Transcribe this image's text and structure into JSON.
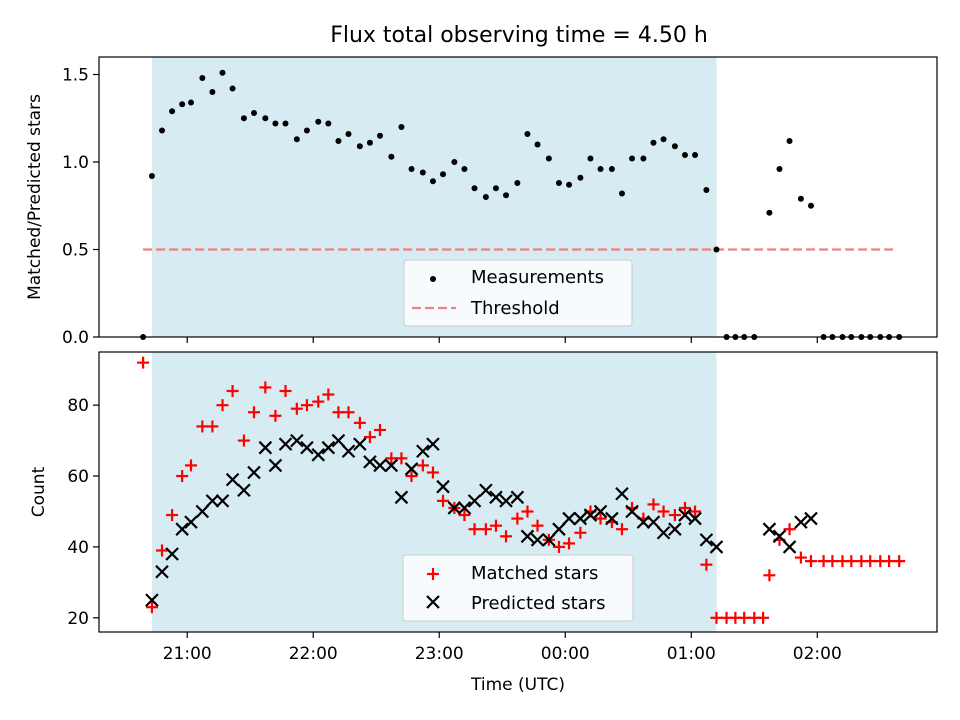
{
  "figure": {
    "title": "Flux total observing time = 4.50 h"
  },
  "colors": {
    "shade": "#add8e6",
    "threshold": "#f08080",
    "matched": "#ff0000",
    "predicted": "#000000",
    "measurement": "#000000"
  },
  "chart_data": [
    {
      "type": "scatter",
      "ylabel": "Matched/Predicted stars",
      "ylim": [
        0,
        1.6
      ],
      "yticks": [
        0.0,
        0.5,
        1.0,
        1.5
      ],
      "ytick_labels": [
        "0.0",
        "0.5",
        "1.0",
        "1.5"
      ],
      "x_unit": "hours since 00:00 UTC (negative = previous evening)",
      "xlim": [
        -3.7,
        2.95
      ],
      "shaded_interval": [
        -3.28,
        1.2
      ],
      "threshold": {
        "name": "Threshold",
        "y": 0.5,
        "x_range": [
          -3.35,
          2.62
        ]
      },
      "legend_placement": "lower center",
      "series": [
        {
          "name": "Measurements",
          "marker": "dot",
          "points": [
            [
              -3.35,
              0.0
            ],
            [
              -3.28,
              0.92
            ],
            [
              -3.2,
              1.18
            ],
            [
              -3.12,
              1.29
            ],
            [
              -3.04,
              1.33
            ],
            [
              -2.97,
              1.34
            ],
            [
              -2.88,
              1.48
            ],
            [
              -2.8,
              1.4
            ],
            [
              -2.72,
              1.51
            ],
            [
              -2.64,
              1.42
            ],
            [
              -2.55,
              1.25
            ],
            [
              -2.47,
              1.28
            ],
            [
              -2.38,
              1.25
            ],
            [
              -2.3,
              1.22
            ],
            [
              -2.22,
              1.22
            ],
            [
              -2.13,
              1.13
            ],
            [
              -2.05,
              1.18
            ],
            [
              -1.96,
              1.23
            ],
            [
              -1.88,
              1.22
            ],
            [
              -1.8,
              1.12
            ],
            [
              -1.72,
              1.16
            ],
            [
              -1.63,
              1.09
            ],
            [
              -1.55,
              1.11
            ],
            [
              -1.47,
              1.15
            ],
            [
              -1.38,
              1.03
            ],
            [
              -1.3,
              1.2
            ],
            [
              -1.22,
              0.96
            ],
            [
              -1.13,
              0.94
            ],
            [
              -1.05,
              0.89
            ],
            [
              -0.97,
              0.93
            ],
            [
              -0.88,
              1.0
            ],
            [
              -0.8,
              0.96
            ],
            [
              -0.72,
              0.85
            ],
            [
              -0.63,
              0.8
            ],
            [
              -0.55,
              0.85
            ],
            [
              -0.47,
              0.81
            ],
            [
              -0.38,
              0.88
            ],
            [
              -0.3,
              1.16
            ],
            [
              -0.22,
              1.1
            ],
            [
              -0.13,
              1.02
            ],
            [
              -0.05,
              0.88
            ],
            [
              0.03,
              0.87
            ],
            [
              0.12,
              0.91
            ],
            [
              0.2,
              1.02
            ],
            [
              0.28,
              0.96
            ],
            [
              0.37,
              0.96
            ],
            [
              0.45,
              0.82
            ],
            [
              0.53,
              1.02
            ],
            [
              0.62,
              1.02
            ],
            [
              0.7,
              1.11
            ],
            [
              0.78,
              1.13
            ],
            [
              0.87,
              1.09
            ],
            [
              0.95,
              1.04
            ],
            [
              1.03,
              1.04
            ],
            [
              1.12,
              0.84
            ],
            [
              1.2,
              0.5
            ],
            [
              1.28,
              0.0
            ],
            [
              1.35,
              0.0
            ],
            [
              1.42,
              0.0
            ],
            [
              1.5,
              0.0
            ],
            [
              1.62,
              0.71
            ],
            [
              1.7,
              0.96
            ],
            [
              1.78,
              1.12
            ],
            [
              1.87,
              0.79
            ],
            [
              1.95,
              0.75
            ],
            [
              2.05,
              0.0
            ],
            [
              2.12,
              0.0
            ],
            [
              2.2,
              0.0
            ],
            [
              2.27,
              0.0
            ],
            [
              2.35,
              0.0
            ],
            [
              2.42,
              0.0
            ],
            [
              2.5,
              0.0
            ],
            [
              2.57,
              0.0
            ],
            [
              2.65,
              0.0
            ]
          ]
        }
      ]
    },
    {
      "type": "scatter",
      "xlabel": "Time (UTC)",
      "ylabel": "Count",
      "ylim": [
        16,
        95
      ],
      "yticks": [
        20,
        40,
        60,
        80
      ],
      "ytick_labels": [
        "20",
        "40",
        "60",
        "80"
      ],
      "x_unit": "hours since 00:00 UTC (negative = previous evening)",
      "xlim": [
        -3.7,
        2.95
      ],
      "xticks": [
        -3,
        -2,
        -1,
        0,
        1,
        2
      ],
      "xtick_labels": [
        "21:00",
        "22:00",
        "23:00",
        "00:00",
        "01:00",
        "02:00"
      ],
      "shaded_interval": [
        -3.28,
        1.2
      ],
      "legend_placement": "lower center",
      "series": [
        {
          "name": "Matched stars",
          "marker": "plus",
          "points": [
            [
              -3.35,
              92
            ],
            [
              -3.28,
              23
            ],
            [
              -3.2,
              39
            ],
            [
              -3.12,
              49
            ],
            [
              -3.04,
              60
            ],
            [
              -2.97,
              63
            ],
            [
              -2.88,
              74
            ],
            [
              -2.8,
              74
            ],
            [
              -2.72,
              80
            ],
            [
              -2.64,
              84
            ],
            [
              -2.55,
              70
            ],
            [
              -2.47,
              78
            ],
            [
              -2.38,
              85
            ],
            [
              -2.3,
              77
            ],
            [
              -2.22,
              84
            ],
            [
              -2.13,
              79
            ],
            [
              -2.05,
              80
            ],
            [
              -1.96,
              81
            ],
            [
              -1.88,
              83
            ],
            [
              -1.8,
              78
            ],
            [
              -1.72,
              78
            ],
            [
              -1.63,
              75
            ],
            [
              -1.55,
              71
            ],
            [
              -1.47,
              73
            ],
            [
              -1.38,
              65
            ],
            [
              -1.3,
              65
            ],
            [
              -1.22,
              60
            ],
            [
              -1.13,
              63
            ],
            [
              -1.05,
              61
            ],
            [
              -0.97,
              53
            ],
            [
              -0.88,
              51
            ],
            [
              -0.8,
              49
            ],
            [
              -0.72,
              45
            ],
            [
              -0.63,
              45
            ],
            [
              -0.55,
              46
            ],
            [
              -0.47,
              43
            ],
            [
              -0.38,
              48
            ],
            [
              -0.3,
              50
            ],
            [
              -0.22,
              46
            ],
            [
              -0.13,
              42
            ],
            [
              -0.05,
              40
            ],
            [
              0.03,
              41
            ],
            [
              0.12,
              44
            ],
            [
              0.2,
              50
            ],
            [
              0.28,
              48
            ],
            [
              0.37,
              47
            ],
            [
              0.45,
              45
            ],
            [
              0.53,
              51
            ],
            [
              0.62,
              48
            ],
            [
              0.7,
              52
            ],
            [
              0.78,
              50
            ],
            [
              0.87,
              49
            ],
            [
              0.95,
              51
            ],
            [
              1.03,
              50
            ],
            [
              1.12,
              35
            ],
            [
              1.2,
              20
            ],
            [
              1.28,
              20
            ],
            [
              1.35,
              20
            ],
            [
              1.42,
              20
            ],
            [
              1.5,
              20
            ],
            [
              1.57,
              20
            ],
            [
              1.62,
              32
            ],
            [
              1.7,
              42
            ],
            [
              1.78,
              45
            ],
            [
              1.87,
              37
            ],
            [
              1.95,
              36
            ],
            [
              2.05,
              36
            ],
            [
              2.12,
              36
            ],
            [
              2.2,
              36
            ],
            [
              2.27,
              36
            ],
            [
              2.35,
              36
            ],
            [
              2.42,
              36
            ],
            [
              2.5,
              36
            ],
            [
              2.57,
              36
            ],
            [
              2.65,
              36
            ]
          ]
        },
        {
          "name": "Predicted stars",
          "marker": "x",
          "points": [
            [
              -3.28,
              25
            ],
            [
              -3.2,
              33
            ],
            [
              -3.12,
              38
            ],
            [
              -3.04,
              45
            ],
            [
              -2.97,
              47
            ],
            [
              -2.88,
              50
            ],
            [
              -2.8,
              53
            ],
            [
              -2.72,
              53
            ],
            [
              -2.64,
              59
            ],
            [
              -2.55,
              56
            ],
            [
              -2.47,
              61
            ],
            [
              -2.38,
              68
            ],
            [
              -2.3,
              63
            ],
            [
              -2.22,
              69
            ],
            [
              -2.13,
              70
            ],
            [
              -2.05,
              68
            ],
            [
              -1.96,
              66
            ],
            [
              -1.88,
              68
            ],
            [
              -1.8,
              70
            ],
            [
              -1.72,
              67
            ],
            [
              -1.63,
              69
            ],
            [
              -1.55,
              64
            ],
            [
              -1.47,
              63
            ],
            [
              -1.38,
              63
            ],
            [
              -1.3,
              54
            ],
            [
              -1.22,
              62
            ],
            [
              -1.13,
              67
            ],
            [
              -1.05,
              69
            ],
            [
              -0.97,
              57
            ],
            [
              -0.88,
              51
            ],
            [
              -0.8,
              51
            ],
            [
              -0.72,
              53
            ],
            [
              -0.63,
              56
            ],
            [
              -0.55,
              54
            ],
            [
              -0.47,
              53
            ],
            [
              -0.38,
              54
            ],
            [
              -0.3,
              43
            ],
            [
              -0.22,
              42
            ],
            [
              -0.13,
              42
            ],
            [
              -0.05,
              45
            ],
            [
              0.03,
              48
            ],
            [
              0.12,
              48
            ],
            [
              0.2,
              49
            ],
            [
              0.28,
              50
            ],
            [
              0.37,
              48
            ],
            [
              0.45,
              55
            ],
            [
              0.53,
              50
            ],
            [
              0.62,
              47
            ],
            [
              0.7,
              47
            ],
            [
              0.78,
              44
            ],
            [
              0.87,
              45
            ],
            [
              0.95,
              49
            ],
            [
              1.03,
              48
            ],
            [
              1.12,
              42
            ],
            [
              1.2,
              40
            ],
            [
              1.62,
              45
            ],
            [
              1.7,
              43
            ],
            [
              1.78,
              40
            ],
            [
              1.87,
              47
            ],
            [
              1.95,
              48
            ]
          ]
        }
      ]
    }
  ]
}
